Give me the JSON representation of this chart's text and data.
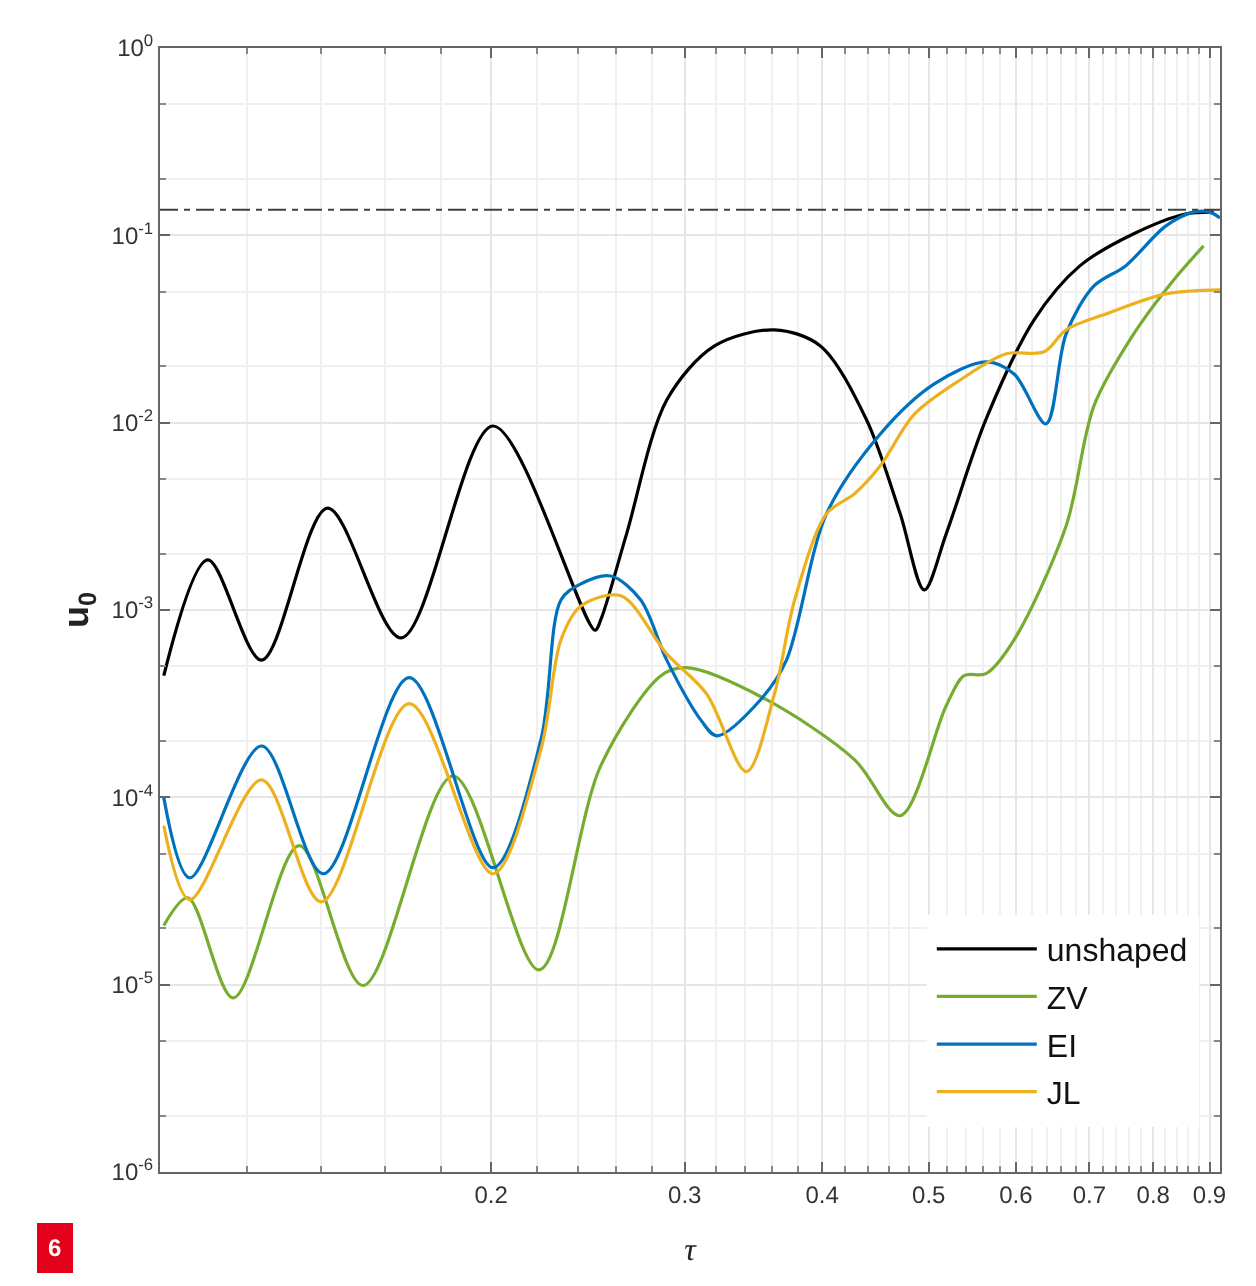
{
  "chart_data": {
    "type": "line",
    "xlabel": "τ",
    "ylabel": "u$_{0}$",
    "log": "xy",
    "grid": true,
    "legend": "bottom right",
    "line_style": "solid",
    "marker": "none",
    "xlim": [
      0.1,
      0.92
    ],
    "xticks": [
      0.2,
      0.3,
      0.4,
      0.5,
      0.6,
      0.7,
      0.8,
      0.9
    ],
    "ylim": [
      1e-06,
      1
    ],
    "yticks": [
      {
        "value": 1e-06,
        "label": "10$^{-6}$"
      },
      {
        "value": 1e-05,
        "label": "10$^{-5}$"
      },
      {
        "value": 0.0001,
        "label": "10$^{-4}$"
      },
      {
        "value": 0.001,
        "label": "10$^{-3}$"
      },
      {
        "value": 0.01,
        "label": "10$^{-2}$"
      },
      {
        "value": 0.1,
        "label": "10$^{-1}$"
      },
      {
        "value": 1,
        "label": "10$^{0}$"
      }
    ],
    "ref_lines": [
      {
        "axis": "y",
        "value": 0.137,
        "color": "#404040",
        "line_style": "dashdot"
      }
    ],
    "annotations": [
      "6"
    ],
    "series": [
      {
        "name": "unshaped",
        "color": "#000000",
        "x": [
          0.1008,
          0.1105,
          0.1237,
          0.142,
          0.1657,
          0.2008,
          0.2486,
          0.2517,
          0.2656,
          0.2889,
          0.3193,
          0.362,
          0.3985,
          0.4388,
          0.471,
          0.4953,
          0.5186,
          0.5636,
          0.6234,
          0.686,
          0.768,
          0.856,
          0.908
        ],
        "values": [
          0.000446,
          0.00185,
          0.00054,
          0.0035,
          0.00071,
          0.0096,
          0.00078,
          0.00089,
          0.00255,
          0.0132,
          0.0257,
          0.0313,
          0.0257,
          0.0104,
          0.00326,
          0.00128,
          0.00255,
          0.0104,
          0.0354,
          0.0687,
          0.102,
          0.13,
          0.133
        ]
      },
      {
        "name": "ZV",
        "color": "#77ac30",
        "x": [
          0.1008,
          0.106,
          0.1166,
          0.1338,
          0.153,
          0.1847,
          0.2211,
          0.2517,
          0.2854,
          0.3012,
          0.356,
          0.428,
          0.471,
          0.5186,
          0.5384,
          0.5636,
          0.5978,
          0.6666,
          0.7066,
          0.768,
          0.835,
          0.889
        ],
        "values": [
          2.07e-05,
          2.91e-05,
          8.5e-06,
          5.52e-05,
          9.9e-06,
          0.00013,
          1.2e-05,
          0.000148,
          0.000446,
          0.000492,
          0.000332,
          0.000159,
          7.98e-05,
          0.000308,
          0.000446,
          0.000457,
          0.000693,
          0.00281,
          0.0123,
          0.0298,
          0.0578,
          0.0878
        ]
      },
      {
        "name": "EI",
        "color": "#0072bd",
        "x": [
          0.1008,
          0.1064,
          0.1237,
          0.1408,
          0.1685,
          0.2008,
          0.222,
          0.2315,
          0.2414,
          0.257,
          0.2736,
          0.2889,
          0.3102,
          0.3208,
          0.3516,
          0.3712,
          0.4036,
          0.4518,
          0.5058,
          0.5636,
          0.5978,
          0.6392,
          0.6666,
          0.7066,
          0.755,
          0.821,
          0.8706,
          0.9,
          0.92
        ],
        "values": [
          9.96e-05,
          3.72e-05,
          0.000188,
          3.91e-05,
          0.000435,
          4.21e-05,
          0.000203,
          0.00113,
          0.00138,
          0.00152,
          0.00113,
          0.00054,
          0.000259,
          0.000213,
          0.000332,
          0.00054,
          0.00326,
          0.0087,
          0.0161,
          0.0211,
          0.0182,
          0.00986,
          0.0298,
          0.0537,
          0.0687,
          0.112,
          0.133,
          0.133,
          0.124
        ]
      },
      {
        "name": "JL",
        "color": "#edb120",
        "x": [
          0.1008,
          0.1064,
          0.1237,
          0.1402,
          0.1685,
          0.2008,
          0.222,
          0.2315,
          0.2414,
          0.2625,
          0.2889,
          0.314,
          0.3414,
          0.362,
          0.3776,
          0.4036,
          0.428,
          0.4518,
          0.4852,
          0.534,
          0.588,
          0.6366,
          0.6666,
          0.7244,
          0.821,
          0.92
        ],
        "values": [
          7.05e-05,
          2.84e-05,
          0.000124,
          2.77e-05,
          0.000316,
          3.91e-05,
          0.00018,
          0.000693,
          0.00105,
          0.00119,
          0.000583,
          0.000357,
          0.000137,
          0.000357,
          0.00113,
          0.00326,
          0.00417,
          0.00589,
          0.0111,
          0.0169,
          0.0233,
          0.0239,
          0.0313,
          0.038,
          0.0487,
          0.0512
        ]
      }
    ]
  }
}
